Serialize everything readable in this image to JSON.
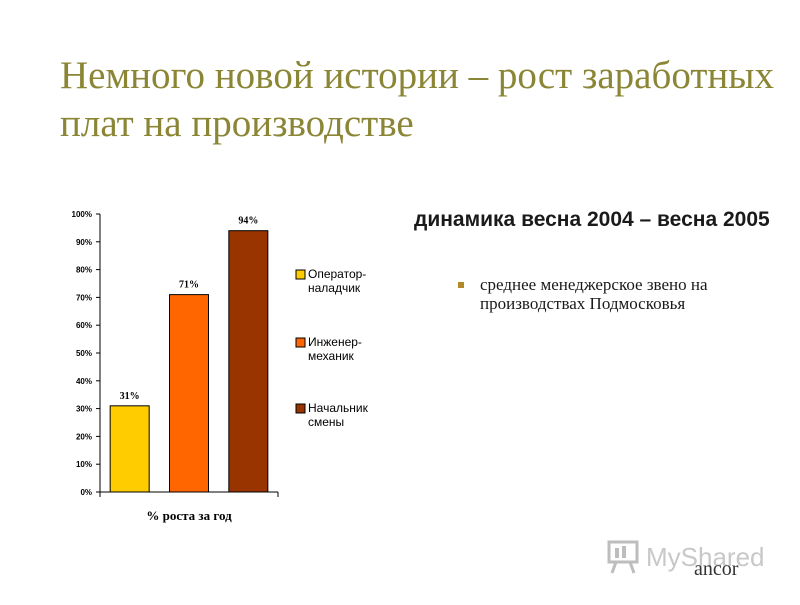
{
  "slide": {
    "title": "Немного новой истории – рост заработных плат на производстве",
    "subtitle": "динамика весна 2004 – весна 2005",
    "bullet": "среднее менеджерское звено на производствах Подмосковья"
  },
  "watermark": {
    "text": "MyShared",
    "logo": "ancor"
  },
  "chart_data": {
    "type": "bar",
    "categories": [
      "Оператор-наладчик",
      "Инженер-механик",
      "Начальник смены"
    ],
    "values": [
      31,
      71,
      94
    ],
    "data_labels": [
      "31%",
      "71%",
      "94%"
    ],
    "xlabel": "% роста за год",
    "ylabel": "",
    "ylim": [
      0,
      100
    ],
    "yticks": [
      "0%",
      "10%",
      "20%",
      "30%",
      "40%",
      "50%",
      "60%",
      "70%",
      "80%",
      "90%",
      "100%"
    ],
    "legend": {
      "position": "right",
      "items": [
        {
          "lines": [
            "Оператор-",
            "наладчик"
          ],
          "color": "#ffcc00"
        },
        {
          "lines": [
            "Инженер-",
            "механик"
          ],
          "color": "#ff6600"
        },
        {
          "lines": [
            "Начальник",
            "смены"
          ],
          "color": "#993300"
        }
      ]
    },
    "colors": [
      "#ffcc00",
      "#ff6600",
      "#993300"
    ],
    "grid": false
  }
}
